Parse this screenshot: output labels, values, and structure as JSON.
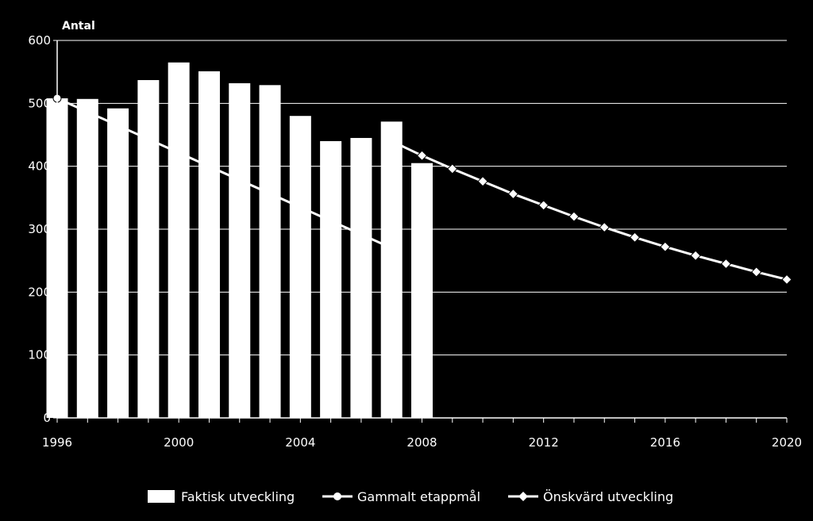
{
  "chart_data": {
    "type": "bar",
    "title": "",
    "xlabel": "",
    "ylabel": "Antal",
    "xlim": [
      1996,
      2020
    ],
    "ylim": [
      0,
      600
    ],
    "yticks": [
      0,
      100,
      200,
      300,
      400,
      500,
      600
    ],
    "xticks": [
      1996,
      2000,
      2004,
      2008,
      2012,
      2016,
      2020
    ],
    "grid": true,
    "legend_position": "bottom",
    "colors": {
      "background": "#000000",
      "foreground": "#ffffff"
    },
    "series": [
      {
        "name": "Faktisk utveckling",
        "kind": "bar",
        "x": [
          1996,
          1997,
          1998,
          1999,
          2000,
          2001,
          2002,
          2003,
          2004,
          2005,
          2006,
          2007,
          2008
        ],
        "values": [
          508,
          507,
          492,
          537,
          565,
          551,
          532,
          529,
          480,
          440,
          445,
          471,
          405
        ]
      },
      {
        "name": "Gammalt etappmål",
        "kind": "line",
        "marker": "circle",
        "x": [
          1996,
          2007
        ],
        "values": [
          508,
          270
        ]
      },
      {
        "name": "Önskvärd utveckling",
        "kind": "line",
        "marker": "diamond",
        "x": [
          2007,
          2008,
          2009,
          2010,
          2011,
          2012,
          2013,
          2014,
          2015,
          2016,
          2017,
          2018,
          2019,
          2020
        ],
        "values": [
          440,
          417,
          396,
          376,
          356,
          338,
          320,
          303,
          287,
          272,
          258,
          245,
          232,
          220
        ],
        "marker_x": [
          2008,
          2009,
          2010,
          2011,
          2012,
          2013,
          2014,
          2015,
          2016,
          2017,
          2018,
          2019,
          2020
        ]
      }
    ]
  }
}
